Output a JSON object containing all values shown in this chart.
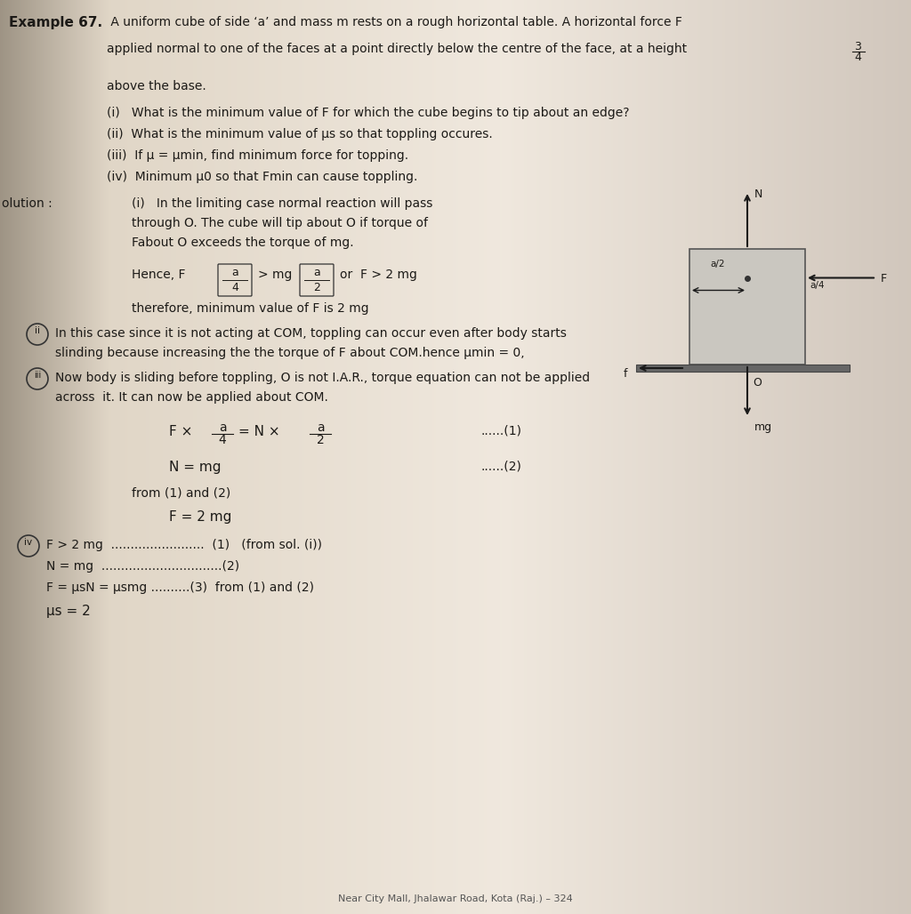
{
  "bg_color_left": "#b8b0a5",
  "bg_color_center": "#e8e4de",
  "bg_color_right": "#d0ccc5",
  "text_color": "#1c1a17",
  "title_bold": "Example 67.",
  "title_rest": " A uniform cube of side ‘a’ and mass m rests on a rough horizontal table. A horizontal force F",
  "title_rest2": "is applied normal to one of the faces at a point directly below the centre of the face, at a height",
  "frac_num": "3",
  "frac_den": "4",
  "line3": "above the base.",
  "q1": "(i)  What is the minimum value of F for which the cube begins to tip about an edge?",
  "q2": "(ii)  What is the minimum value of μs so that toppling occures.",
  "q3": "(iii)  If μ = μmin, find minimum force for topping.",
  "q4": "(iv)  Minimum μ0 so that Fmin can cause toppling.",
  "sol_label": "olution :",
  "sol_i1": "(i)   In the limiting case normal reaction will pass",
  "sol_i2": "through O. The cube will tip about O if torque of",
  "sol_i3": "Fabout O exceeds the torque of mg.",
  "hence": "Hence, F",
  "gt_mg": "> mg",
  "or_f": "or  F > 2 mg",
  "therefore": "therefore, minimum value of F is 2 mg",
  "ii_1": "In this case since it is not acting at COM, toppling can occur even after body starts",
  "ii_2": "slinding because increasing the the torque of F about COM.hence μmin = 0,",
  "iii_1": "Now body is sliding before toppling, O is not I.A.R., torque equation can not be applied",
  "iii_2": "across  it. It can now be applied about COM.",
  "eq1_lhs": "F ×",
  "eq1_rhs": "= N ×",
  "eq1_num": "(1)",
  "eq2_str": "N = mg",
  "eq2_num": "(2)",
  "from12": "from (1) and (2)",
  "f2mg": "F = 2 mg",
  "iv_f": "F > 2 mg",
  "iv_dots1": "........................",
  "iv_1": "(1)   (from sol. (i))",
  "iv_n": "N = mg",
  "iv_dots2": ".................................",
  "iv_2": "(2)",
  "iv_feq": "F = μsN = μsmg",
  "iv_dots3": "..........",
  "iv_3": "(3)  from (1) and (2)",
  "iv_mu": "μs = 2",
  "footer": "Near City Mall, Jhalawar Road, Kota (Raj.) – 324",
  "diagram": {
    "cube_color": "#c8c5bf",
    "ground_color": "#6a6a6a",
    "arrow_color": "#1a1a1a"
  }
}
